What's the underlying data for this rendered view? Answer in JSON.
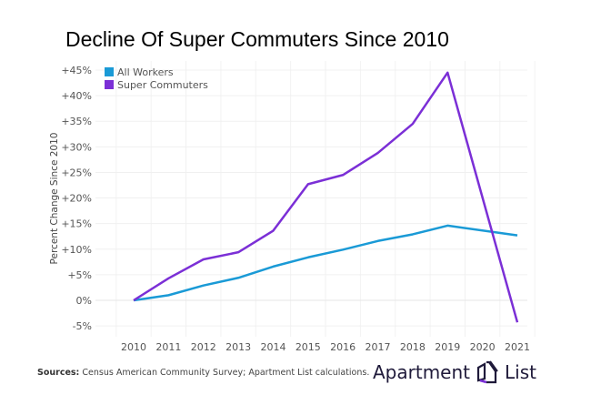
{
  "chart_data": {
    "type": "line",
    "title": "Decline Of Super Commuters Since 2010",
    "xlabel": "",
    "ylabel": "Percent Change Since 2010",
    "categories": [
      "2010",
      "2011",
      "2012",
      "2013",
      "2014",
      "2015",
      "2016",
      "2017",
      "2018",
      "2019",
      "2020",
      "2021"
    ],
    "ylim": [
      -7,
      47
    ],
    "yticks": [
      -5,
      0,
      5,
      10,
      15,
      20,
      25,
      30,
      35,
      40,
      45
    ],
    "ytick_labels": [
      "-5%",
      "0%",
      "+5%",
      "+10%",
      "+15%",
      "+20%",
      "+25%",
      "+30%",
      "+35%",
      "+40%",
      "+45%"
    ],
    "grid": true,
    "legend_position": "top-left",
    "series": [
      {
        "name": "All Workers",
        "color": "#1a9ad6",
        "values": [
          0,
          1.0,
          2.9,
          4.4,
          6.6,
          8.4,
          9.9,
          11.6,
          12.9,
          14.6,
          null,
          12.7
        ]
      },
      {
        "name": "Super Commuters",
        "color": "#7b2fd6",
        "values": [
          0,
          4.3,
          8.0,
          9.4,
          13.6,
          22.7,
          24.5,
          28.8,
          34.5,
          44.5,
          null,
          -4.3
        ]
      }
    ]
  },
  "footer": {
    "sources_label": "Sources:",
    "sources_text": " Census American Community Survey; Apartment List calculations."
  },
  "logo": {
    "left": "Apartment",
    "right": "List"
  }
}
